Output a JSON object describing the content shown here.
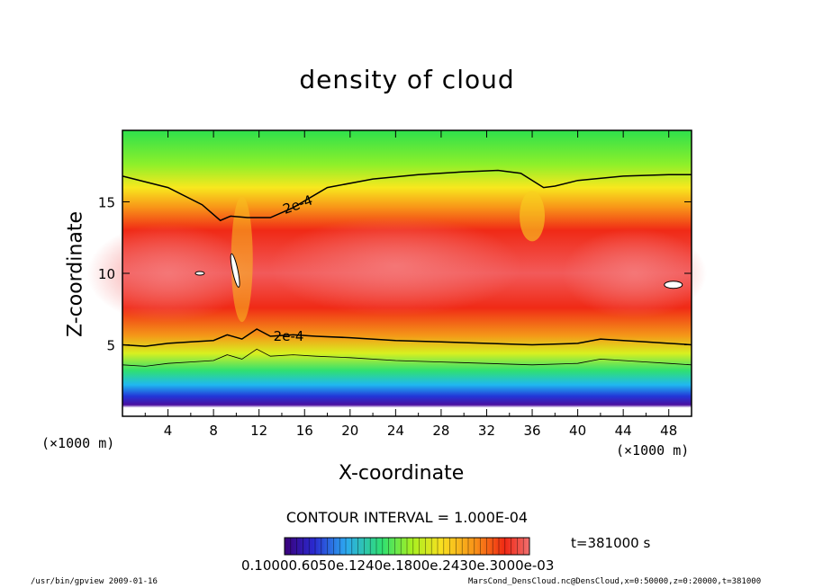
{
  "chart_data": {
    "type": "heatmap",
    "title": "density of cloud",
    "xlabel": "X-coordinate",
    "ylabel": "Z-coordinate",
    "x_unit_label": "(×1000 m)",
    "xlim": [
      0,
      50
    ],
    "ylim": [
      0,
      20
    ],
    "x_ticks": [
      4,
      8,
      12,
      16,
      20,
      24,
      28,
      32,
      36,
      40,
      44,
      48
    ],
    "y_ticks": [
      5,
      10,
      15
    ],
    "contour_label": "2e-4",
    "contour_interval_text": "CONTOUR INTERVAL = 1.000E-04",
    "time_text": "t=381000 s",
    "colorbar_text": "0.10000.6050e.1240e.1800e.2430e.3000e-03",
    "upper_contour": [
      [
        0,
        16.8
      ],
      [
        4,
        16.0
      ],
      [
        7,
        14.8
      ],
      [
        8.6,
        13.7
      ],
      [
        9.5,
        14.0
      ],
      [
        11,
        13.9
      ],
      [
        13,
        13.9
      ],
      [
        15,
        14.6
      ],
      [
        18,
        16.0
      ],
      [
        22,
        16.6
      ],
      [
        26,
        16.9
      ],
      [
        30,
        17.1
      ],
      [
        33,
        17.2
      ],
      [
        35,
        17.0
      ],
      [
        37,
        16.0
      ],
      [
        38,
        16.1
      ],
      [
        40,
        16.5
      ],
      [
        44,
        16.8
      ],
      [
        48,
        16.9
      ],
      [
        50,
        16.9
      ]
    ],
    "lower_contour": [
      [
        0,
        5.0
      ],
      [
        2,
        4.9
      ],
      [
        4,
        5.1
      ],
      [
        6,
        5.2
      ],
      [
        8,
        5.3
      ],
      [
        9.2,
        5.7
      ],
      [
        10.5,
        5.4
      ],
      [
        11.8,
        6.1
      ],
      [
        13,
        5.6
      ],
      [
        15,
        5.7
      ],
      [
        17,
        5.6
      ],
      [
        20,
        5.5
      ],
      [
        24,
        5.3
      ],
      [
        28,
        5.2
      ],
      [
        32,
        5.1
      ],
      [
        36,
        5.0
      ],
      [
        40,
        5.1
      ],
      [
        42,
        5.4
      ],
      [
        44,
        5.3
      ],
      [
        46,
        5.2
      ],
      [
        48,
        5.1
      ],
      [
        50,
        5.0
      ]
    ],
    "colors": [
      "#3b007a",
      "#1f2fd0",
      "#2ca0f0",
      "#28e060",
      "#b8f020",
      "#f8e020",
      "#f89018",
      "#f02814",
      "#f07070"
    ]
  },
  "footer": {
    "left": "/usr/bin/gpview  2009-01-16",
    "right": "MarsCond_DensCloud.nc@DensCloud,x=0:50000,z=0:20000,t=381000"
  }
}
